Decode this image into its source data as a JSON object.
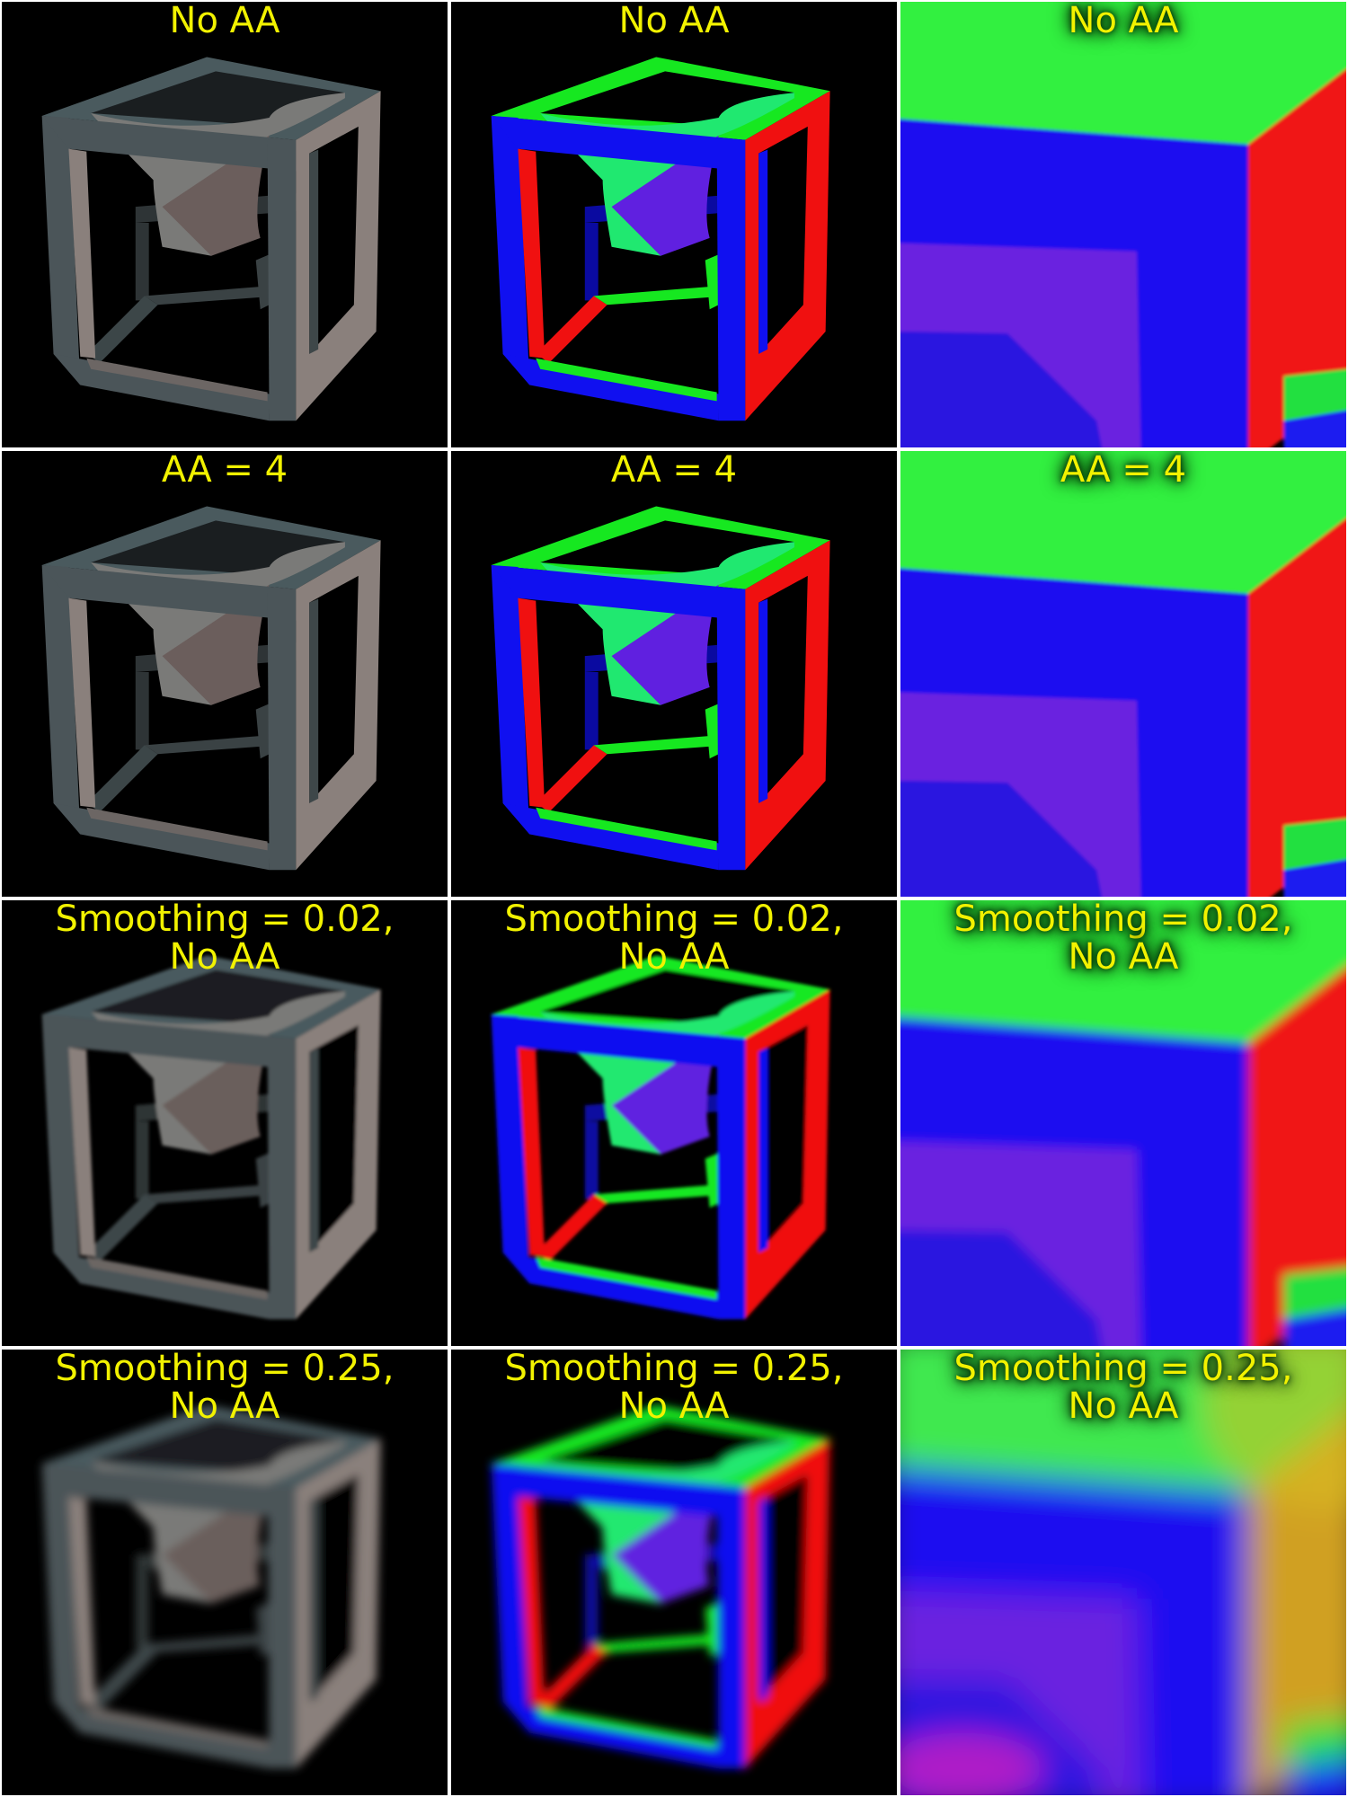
{
  "colors": {
    "background": "#000000",
    "separator": "#ffffff",
    "caption": "#f2f200"
  },
  "columns": [
    "grey-shaded",
    "normal-colored",
    "close-up"
  ],
  "rows": [
    {
      "id": "no-aa",
      "label": "No AA",
      "smoothing": 0.0
    },
    {
      "id": "aa-4",
      "label": "AA = 4",
      "smoothing": 0.0
    },
    {
      "id": "smoothing-002",
      "label": "Smoothing = 0.02,\nNo AA",
      "smoothing": 0.02
    },
    {
      "id": "smoothing-025",
      "label": "Smoothing = 0.25,\nNo AA",
      "smoothing": 0.25
    }
  ]
}
